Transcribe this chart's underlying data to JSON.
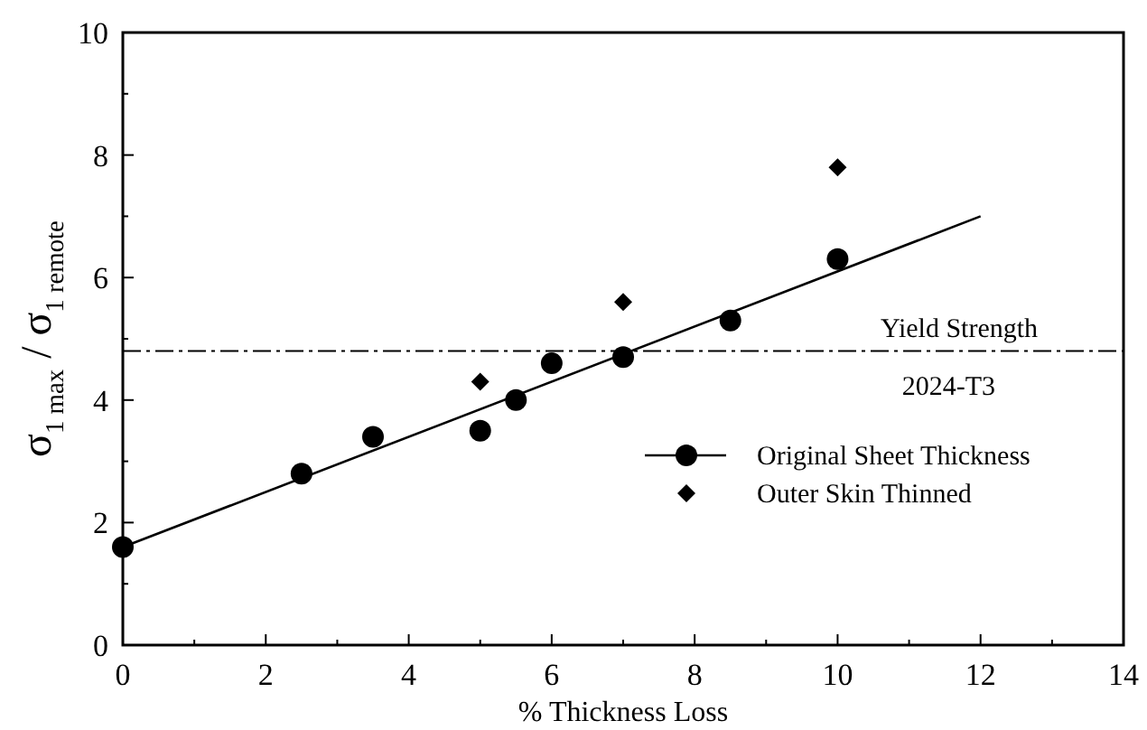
{
  "chart_data": {
    "type": "scatter",
    "xlabel": "% Thickness Loss",
    "ylabel": "σ$_{1 max}$ / σ$_{1 remote}$",
    "xlim": [
      0,
      14
    ],
    "ylim": [
      0,
      10
    ],
    "xticks": [
      0,
      {
        "value": 1,
        "label": null
      },
      2,
      {
        "value": 3,
        "label": null
      },
      4,
      {
        "value": 5,
        "label": null
      },
      6,
      {
        "value": 7,
        "label": null
      },
      8,
      {
        "value": 9,
        "label": null
      },
      10,
      {
        "value": 11,
        "label": null
      },
      12,
      {
        "value": 13,
        "label": null
      },
      14
    ],
    "yticks": [
      0,
      {
        "value": 1,
        "label": null
      },
      2,
      {
        "value": 3,
        "label": null
      },
      4,
      {
        "value": 5,
        "label": null
      },
      6,
      {
        "value": 7,
        "label": null
      },
      8,
      {
        "value": 9,
        "label": null
      },
      10
    ],
    "grid": false,
    "legend": "bottom right",
    "series": [
      {
        "name": "Original Sheet Thickness",
        "marker": "circle",
        "color": "#000000",
        "x": [
          0,
          2.5,
          3.5,
          5,
          5.5,
          6,
          7,
          8.5,
          10
        ],
        "values": [
          1.6,
          2.8,
          3.4,
          3.5,
          4.0,
          4.6,
          4.7,
          5.3,
          6.3
        ]
      },
      {
        "type": "line",
        "marker": "none",
        "line_style": "solid",
        "color": "#000000",
        "x": [
          0,
          12
        ],
        "values": [
          1.6,
          7.0
        ]
      },
      {
        "name": "Outer Skin Thinned",
        "marker": "diamond",
        "color": "#000000",
        "x": [
          5,
          7,
          10
        ],
        "values": [
          4.3,
          5.6,
          7.8
        ]
      }
    ],
    "ref_lines": [
      {
        "axis": "y",
        "value": 4.8,
        "label": "Yield Strength",
        "line_style": "dashdot",
        "color": "#000000"
      }
    ],
    "annotations": [
      "2024-T3"
    ]
  }
}
